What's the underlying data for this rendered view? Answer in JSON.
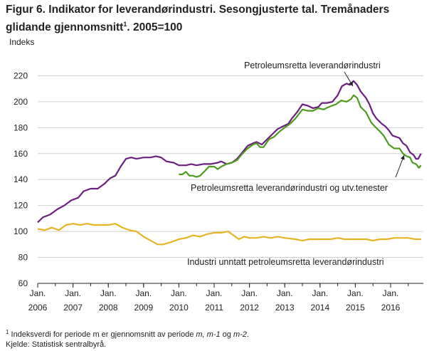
{
  "title": {
    "main": "Figur 6. Indikator for leverandørindustri. Sesongjusterte tal. Tremånaders glidande gjennomsnitt",
    "sup": "1",
    "tail": ". 2005=100"
  },
  "footnote": {
    "line1_sup": "1",
    "line1_text_a": " Indeksverdi for periode m er gjennomsnitt av periode ",
    "line1_italic": "m, m-1",
    "line1_text_b": " og ",
    "line1_italic2": "m-2",
    "line1_end": ".",
    "line2": "Kjelde: Statistisk sentralbyrå."
  },
  "colors": {
    "purple": "#6b1f7f",
    "green": "#4e9a1e",
    "yellow": "#e6b422",
    "grid": "#d0d0d0"
  },
  "chart_data": {
    "type": "line",
    "ylabel": "Indeks",
    "ylim": [
      60,
      240
    ],
    "yticks": [
      60,
      80,
      100,
      120,
      140,
      160,
      180,
      200,
      220
    ],
    "xlim": [
      2006.0,
      2016.9
    ],
    "xticks": [
      {
        "month": "Jan.",
        "year": "2006",
        "x": 2006
      },
      {
        "month": "Jan.",
        "year": "2007",
        "x": 2007
      },
      {
        "month": "Jan.",
        "year": "2008",
        "x": 2008
      },
      {
        "month": "Jan.",
        "year": "2009",
        "x": 2009
      },
      {
        "month": "Jan.",
        "year": "2010",
        "x": 2010
      },
      {
        "month": "Jan.",
        "year": "2011",
        "x": 2011
      },
      {
        "month": "Jan.",
        "year": "2012",
        "x": 2012
      },
      {
        "month": "Jan.",
        "year": "2013",
        "x": 2013
      },
      {
        "month": "Jan.",
        "year": "2014",
        "x": 2014
      },
      {
        "month": "Jan.",
        "year": "2015",
        "x": 2015
      },
      {
        "month": "Jan.",
        "year": "2016",
        "x": 2016
      }
    ],
    "grid": "horizontal",
    "series": [
      {
        "name": "Petroleumsretta leverandørindustri",
        "color": "#6b1f7f",
        "points": [
          [
            2006.0,
            107
          ],
          [
            2006.15,
            111
          ],
          [
            2006.35,
            113
          ],
          [
            2006.55,
            117
          ],
          [
            2006.75,
            120
          ],
          [
            2006.95,
            124
          ],
          [
            2007.15,
            126
          ],
          [
            2007.3,
            131
          ],
          [
            2007.5,
            133
          ],
          [
            2007.7,
            133
          ],
          [
            2007.9,
            137
          ],
          [
            2008.05,
            141
          ],
          [
            2008.2,
            143
          ],
          [
            2008.35,
            150
          ],
          [
            2008.5,
            156
          ],
          [
            2008.65,
            157
          ],
          [
            2008.8,
            156
          ],
          [
            2009.0,
            157
          ],
          [
            2009.2,
            157
          ],
          [
            2009.35,
            158
          ],
          [
            2009.5,
            157
          ],
          [
            2009.65,
            154
          ],
          [
            2009.85,
            153
          ],
          [
            2010.0,
            151
          ],
          [
            2010.2,
            151
          ],
          [
            2010.35,
            152
          ],
          [
            2010.5,
            151
          ],
          [
            2010.7,
            152
          ],
          [
            2010.9,
            152
          ],
          [
            2011.1,
            153
          ],
          [
            2011.2,
            154
          ],
          [
            2011.35,
            152
          ],
          [
            2011.5,
            153
          ],
          [
            2011.65,
            156
          ],
          [
            2011.8,
            161
          ],
          [
            2011.95,
            166
          ],
          [
            2012.1,
            168
          ],
          [
            2012.2,
            169
          ],
          [
            2012.35,
            167
          ],
          [
            2012.5,
            171
          ],
          [
            2012.65,
            175
          ],
          [
            2012.8,
            179
          ],
          [
            2012.95,
            181
          ],
          [
            2013.1,
            183
          ],
          [
            2013.2,
            187
          ],
          [
            2013.35,
            192
          ],
          [
            2013.5,
            198
          ],
          [
            2013.65,
            197
          ],
          [
            2013.8,
            195
          ],
          [
            2013.95,
            196
          ],
          [
            2014.05,
            199
          ],
          [
            2014.2,
            199
          ],
          [
            2014.35,
            200
          ],
          [
            2014.5,
            205
          ],
          [
            2014.62,
            212
          ],
          [
            2014.75,
            214
          ],
          [
            2014.85,
            213
          ],
          [
            2014.95,
            216
          ],
          [
            2015.05,
            213
          ],
          [
            2015.15,
            208
          ],
          [
            2015.3,
            203
          ],
          [
            2015.4,
            198
          ],
          [
            2015.5,
            191
          ],
          [
            2015.6,
            187
          ],
          [
            2015.75,
            183
          ],
          [
            2015.85,
            181
          ],
          [
            2015.95,
            178
          ],
          [
            2016.05,
            174
          ],
          [
            2016.25,
            172
          ],
          [
            2016.35,
            168
          ],
          [
            2016.45,
            166
          ],
          [
            2016.55,
            161
          ],
          [
            2016.65,
            159
          ],
          [
            2016.72,
            156
          ],
          [
            2016.78,
            156
          ],
          [
            2016.82,
            158
          ],
          [
            2016.86,
            160
          ]
        ]
      },
      {
        "name": "Petroleumsretta leverandørindustri og utv.tenester",
        "color": "#4e9a1e",
        "points": [
          [
            2010.0,
            144
          ],
          [
            2010.1,
            144
          ],
          [
            2010.2,
            146
          ],
          [
            2010.3,
            143
          ],
          [
            2010.4,
            143
          ],
          [
            2010.5,
            142
          ],
          [
            2010.6,
            143
          ],
          [
            2010.75,
            147
          ],
          [
            2010.85,
            150
          ],
          [
            2011.0,
            150
          ],
          [
            2011.1,
            148
          ],
          [
            2011.2,
            150
          ],
          [
            2011.35,
            152
          ],
          [
            2011.5,
            153
          ],
          [
            2011.65,
            155
          ],
          [
            2011.8,
            160
          ],
          [
            2011.95,
            164
          ],
          [
            2012.1,
            167
          ],
          [
            2012.2,
            168
          ],
          [
            2012.3,
            165
          ],
          [
            2012.4,
            165
          ],
          [
            2012.55,
            171
          ],
          [
            2012.7,
            173
          ],
          [
            2012.85,
            177
          ],
          [
            2013.0,
            180
          ],
          [
            2013.15,
            183
          ],
          [
            2013.3,
            187
          ],
          [
            2013.5,
            194
          ],
          [
            2013.65,
            193
          ],
          [
            2013.8,
            193
          ],
          [
            2013.95,
            195
          ],
          [
            2014.1,
            194
          ],
          [
            2014.25,
            196
          ],
          [
            2014.45,
            198
          ],
          [
            2014.6,
            201
          ],
          [
            2014.75,
            200
          ],
          [
            2014.88,
            202
          ],
          [
            2014.95,
            205
          ],
          [
            2015.05,
            203
          ],
          [
            2015.15,
            196
          ],
          [
            2015.3,
            192
          ],
          [
            2015.45,
            184
          ],
          [
            2015.55,
            181
          ],
          [
            2015.7,
            177
          ],
          [
            2015.8,
            174
          ],
          [
            2015.95,
            167
          ],
          [
            2016.1,
            164
          ],
          [
            2016.25,
            164
          ],
          [
            2016.35,
            160
          ],
          [
            2016.45,
            158
          ],
          [
            2016.55,
            157
          ],
          [
            2016.62,
            153
          ],
          [
            2016.72,
            152
          ],
          [
            2016.8,
            149
          ],
          [
            2016.86,
            151
          ]
        ]
      },
      {
        "name": "Industri unntatt petroleumsretta leverandørindustri",
        "color": "#e6b422",
        "points": [
          [
            2006.0,
            102
          ],
          [
            2006.2,
            101
          ],
          [
            2006.4,
            103
          ],
          [
            2006.6,
            101
          ],
          [
            2006.8,
            105
          ],
          [
            2007.0,
            106
          ],
          [
            2007.2,
            105
          ],
          [
            2007.4,
            106
          ],
          [
            2007.6,
            105
          ],
          [
            2007.8,
            105
          ],
          [
            2008.0,
            105
          ],
          [
            2008.2,
            106
          ],
          [
            2008.4,
            103
          ],
          [
            2008.6,
            101
          ],
          [
            2008.8,
            100
          ],
          [
            2009.0,
            96
          ],
          [
            2009.2,
            93
          ],
          [
            2009.4,
            90
          ],
          [
            2009.55,
            90
          ],
          [
            2009.8,
            92
          ],
          [
            2010.0,
            94
          ],
          [
            2010.2,
            95
          ],
          [
            2010.4,
            97
          ],
          [
            2010.6,
            96
          ],
          [
            2010.8,
            98
          ],
          [
            2011.0,
            99
          ],
          [
            2011.2,
            99
          ],
          [
            2011.4,
            100
          ],
          [
            2011.55,
            97
          ],
          [
            2011.7,
            94
          ],
          [
            2011.85,
            96
          ],
          [
            2012.0,
            95
          ],
          [
            2012.2,
            95
          ],
          [
            2012.4,
            96
          ],
          [
            2012.6,
            95
          ],
          [
            2012.8,
            96
          ],
          [
            2013.0,
            95
          ],
          [
            2013.3,
            94
          ],
          [
            2013.5,
            93
          ],
          [
            2013.7,
            94
          ],
          [
            2013.9,
            94
          ],
          [
            2014.1,
            94
          ],
          [
            2014.3,
            94
          ],
          [
            2014.5,
            95
          ],
          [
            2014.7,
            94
          ],
          [
            2014.9,
            94
          ],
          [
            2015.1,
            94
          ],
          [
            2015.3,
            94
          ],
          [
            2015.5,
            93
          ],
          [
            2015.7,
            94
          ],
          [
            2015.9,
            94
          ],
          [
            2016.1,
            95
          ],
          [
            2016.3,
            95
          ],
          [
            2016.5,
            95
          ],
          [
            2016.7,
            94
          ],
          [
            2016.86,
            94
          ]
        ]
      }
    ],
    "annotations": [
      {
        "text": "Petroleumsretta  leverandørindustri",
        "series": 0
      },
      {
        "text": "Petroleumsretta  leverandørindustri  og  utv.tenester",
        "series": 1
      },
      {
        "text": "Industri  unntatt petroleumsretta  leverandørindustri",
        "series": 2
      }
    ]
  }
}
